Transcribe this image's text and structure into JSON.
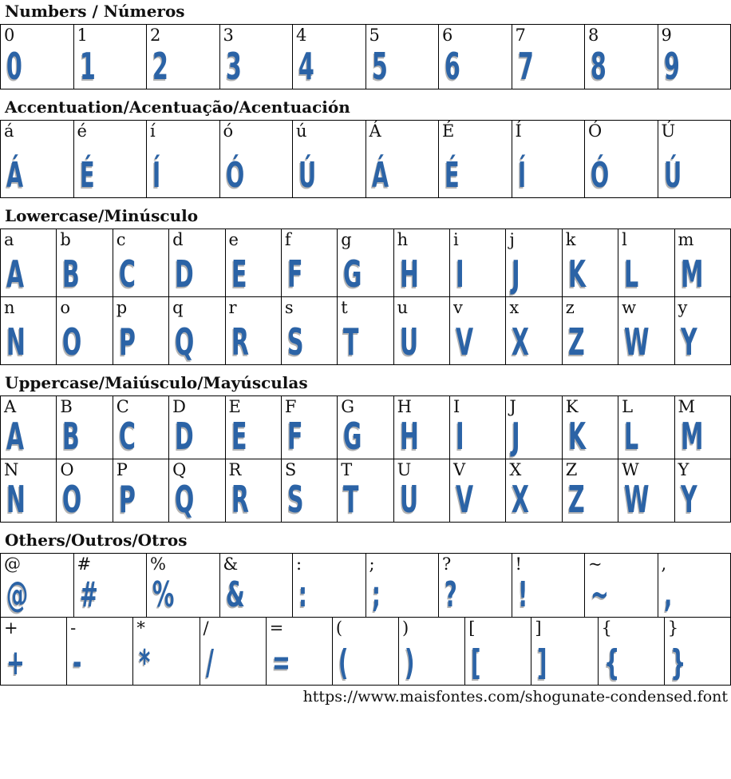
{
  "glyph_style": {
    "color": "#2b63a6",
    "shadow": "#b3b3b3"
  },
  "sections": [
    {
      "id": "numbers",
      "title": "Numbers / Números",
      "rows": [
        [
          "0",
          "1",
          "2",
          "3",
          "4",
          "5",
          "6",
          "7",
          "8",
          "9"
        ]
      ]
    },
    {
      "id": "accentuation",
      "title": "Accentuation/Acentuação/Acentuación",
      "rows": [
        [
          "á",
          "é",
          "í",
          "ó",
          "ú",
          "Á",
          "É",
          "Í",
          "Ó",
          "Ú"
        ]
      ]
    },
    {
      "id": "lowercase",
      "title": "Lowercase/Minúsculo",
      "rows": [
        [
          "a",
          "b",
          "c",
          "d",
          "e",
          "f",
          "g",
          "h",
          "i",
          "j",
          "k",
          "l",
          "m"
        ],
        [
          "n",
          "o",
          "p",
          "q",
          "r",
          "s",
          "t",
          "u",
          "v",
          "x",
          "z",
          "w",
          "y"
        ]
      ]
    },
    {
      "id": "uppercase",
      "title": "Uppercase/Maiúsculo/Mayúsculas",
      "rows": [
        [
          "A",
          "B",
          "C",
          "D",
          "E",
          "F",
          "G",
          "H",
          "I",
          "J",
          "K",
          "L",
          "M"
        ],
        [
          "N",
          "O",
          "P",
          "Q",
          "R",
          "S",
          "T",
          "U",
          "V",
          "X",
          "Z",
          "W",
          "Y"
        ]
      ]
    },
    {
      "id": "others",
      "title": "Others/Outros/Otros",
      "rows": [
        [
          "@",
          "#",
          "%",
          "&",
          ":",
          ";",
          "?",
          "!",
          "~",
          ","
        ],
        [
          "+",
          "-",
          "*",
          "/",
          "=",
          "(",
          ")",
          "[",
          "]",
          "{",
          "}"
        ]
      ]
    }
  ],
  "footer": {
    "url_text": "https://www.maisfontes.com/shogunate-condensed.font"
  }
}
